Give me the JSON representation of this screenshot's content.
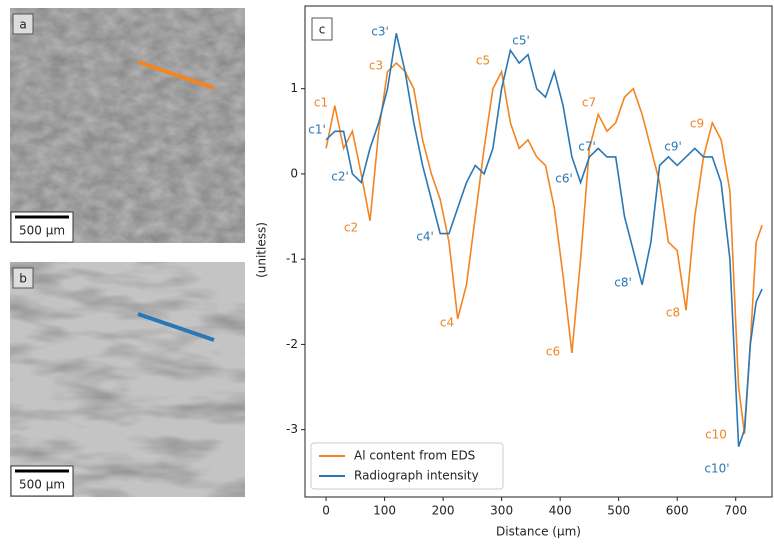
{
  "panels": [
    {
      "label": "a",
      "scale_bar": "500 µm"
    },
    {
      "label": "b",
      "scale_bar": "500 µm"
    }
  ],
  "chart_data": {
    "type": "line",
    "panel_label": "c",
    "x_label": "Distance (μm)",
    "y_label": "(unitless)",
    "xlim": [
      -36,
      762
    ],
    "ylim": [
      -3.79,
      1.97
    ],
    "xticks": [
      0,
      100,
      200,
      300,
      400,
      500,
      600,
      700
    ],
    "yticks": [
      1,
      0,
      -1,
      -2,
      -3
    ],
    "legend": "lower left",
    "x": [
      0,
      15,
      30,
      45,
      60,
      75,
      90,
      105,
      120,
      135,
      150,
      165,
      180,
      195,
      210,
      225,
      240,
      255,
      270,
      285,
      300,
      315,
      330,
      345,
      360,
      375,
      390,
      405,
      420,
      435,
      450,
      465,
      480,
      495,
      510,
      525,
      540,
      555,
      570,
      585,
      600,
      615,
      630,
      645,
      660,
      675,
      690,
      705,
      715,
      725,
      735,
      745
    ],
    "series": [
      {
        "name": "Al content from EDS",
        "color": "#f28522",
        "values": [
          0.3,
          0.8,
          0.3,
          0.5,
          0,
          -0.55,
          0.5,
          1.2,
          1.3,
          1.2,
          1.0,
          0.4,
          0,
          -0.3,
          -0.8,
          -1.7,
          -1.3,
          -0.5,
          0.3,
          1.0,
          1.2,
          0.6,
          0.3,
          0.4,
          0.2,
          0.1,
          -0.4,
          -1.2,
          -2.1,
          -1.0,
          0.3,
          0.7,
          0.5,
          0.6,
          0.9,
          1.0,
          0.7,
          0.3,
          -0.1,
          -0.8,
          -0.9,
          -1.6,
          -0.5,
          0.2,
          0.6,
          0.4,
          -0.2,
          -2.5,
          -3.05,
          -2.0,
          -0.8,
          -0.6
        ]
      },
      {
        "name": "Radiograph intensity",
        "color": "#2a77b4",
        "values": [
          0.4,
          0.5,
          0.5,
          0,
          -0.1,
          0.3,
          0.6,
          1.0,
          1.65,
          1.2,
          0.6,
          0.1,
          -0.3,
          -0.7,
          -0.7,
          -0.4,
          -0.1,
          0.1,
          0,
          0.3,
          1.0,
          1.45,
          1.3,
          1.4,
          1.0,
          0.9,
          1.2,
          0.8,
          0.2,
          -0.1,
          0.2,
          0.3,
          0.2,
          0.2,
          -0.5,
          -0.9,
          -1.3,
          -0.8,
          0.1,
          0.2,
          0.1,
          0.2,
          0.3,
          0.2,
          0.2,
          -0.1,
          -1.0,
          -3.2,
          -3.0,
          -2.0,
          -1.5,
          -1.35
        ]
      }
    ],
    "annotations": [
      {
        "text": "c1",
        "series": 0
      },
      {
        "text": "c1'",
        "series": 1
      },
      {
        "text": "c2'",
        "series": 1
      },
      {
        "text": "c2",
        "series": 0
      },
      {
        "text": "c3'",
        "series": 1
      },
      {
        "text": "c3",
        "series": 0
      },
      {
        "text": "c4'",
        "series": 1
      },
      {
        "text": "c4",
        "series": 0
      },
      {
        "text": "c5",
        "series": 0
      },
      {
        "text": "c5'",
        "series": 1
      },
      {
        "text": "c6'",
        "series": 1
      },
      {
        "text": "c6",
        "series": 0
      },
      {
        "text": "c7",
        "series": 0
      },
      {
        "text": "c7'",
        "series": 1
      },
      {
        "text": "c8'",
        "series": 1
      },
      {
        "text": "c8",
        "series": 0
      },
      {
        "text": "c9'",
        "series": 1
      },
      {
        "text": "c9",
        "series": 0
      },
      {
        "text": "c10",
        "series": 0
      },
      {
        "text": "c10'",
        "series": 1
      }
    ]
  }
}
